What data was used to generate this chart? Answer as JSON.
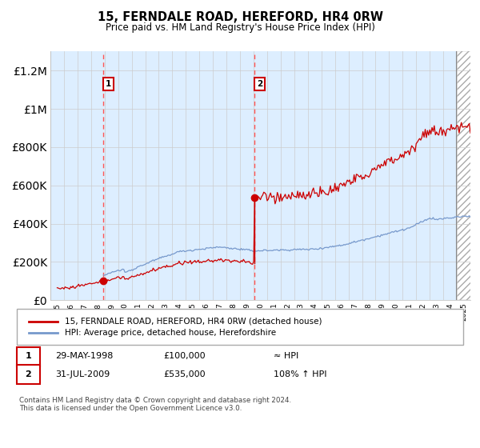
{
  "title": "15, FERNDALE ROAD, HEREFORD, HR4 0RW",
  "subtitle": "Price paid vs. HM Land Registry's House Price Index (HPI)",
  "legend_line1": "15, FERNDALE ROAD, HEREFORD, HR4 0RW (detached house)",
  "legend_line2": "HPI: Average price, detached house, Herefordshire",
  "annotation1_date": "29-MAY-1998",
  "annotation1_price": "£100,000",
  "annotation1_hpi": "≈ HPI",
  "annotation2_date": "31-JUL-2009",
  "annotation2_price": "£535,000",
  "annotation2_hpi": "108% ↑ HPI",
  "footer": "Contains HM Land Registry data © Crown copyright and database right 2024.\nThis data is licensed under the Open Government Licence v3.0.",
  "hpi_color": "#7799cc",
  "price_color": "#cc0000",
  "bg_color": "#ddeeff",
  "grid_color": "#cccccc",
  "vline_color": "#ff5555",
  "ylim": [
    0,
    1300000
  ],
  "xlim_start": 1994.5,
  "xlim_end": 2025.5,
  "sale1_year": 1998.41,
  "sale1_price": 100000,
  "sale2_year": 2009.58,
  "sale2_price": 535000,
  "hatch_start": 2024.42
}
